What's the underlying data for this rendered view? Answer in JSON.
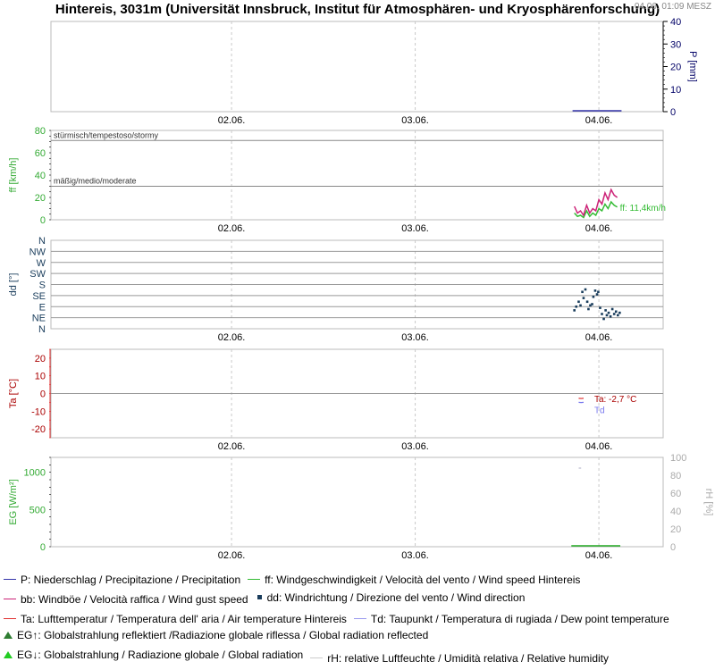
{
  "header": {
    "title": "Hintereis, 3031m (Universität Innsbruck, Institut für Atmosphären- und Kryosphärenforschung)",
    "timestamp": "04.06. 01:09 MESZ"
  },
  "colors": {
    "precip": "#3333aa",
    "wind_speed": "#33bb33",
    "wind_gust": "#cc2277",
    "wind_dir": "#1a3d5c",
    "air_temp": "#e03030",
    "dew_point": "#7777ee",
    "rad_reflected": "#2e7d32",
    "rad_global": "#22aa22",
    "humidity": "#c8c8d8",
    "grid": "#c8c8c8",
    "axis_precip": "#000066",
    "axis_ff": "#33aa33",
    "axis_dd": "#1a3d5c",
    "axis_ta": "#aa0000",
    "axis_eg": "#33aa33",
    "axis_rh": "#aaaaaa"
  },
  "chart_data": [
    {
      "id": "precip",
      "type": "bar",
      "ylabel": "P [mm]",
      "ylim": [
        0,
        40
      ],
      "yticks": [
        0,
        10,
        20,
        30,
        40
      ],
      "yaxis_side": "right",
      "xlabels": [
        "02.06.",
        "03.06.",
        "04.06."
      ],
      "xtick_positions": [
        0.295,
        0.595,
        0.895
      ],
      "series": [
        {
          "x": [
            0.852,
            0.862,
            0.872,
            0.882,
            0.892,
            0.902,
            0.912,
            0.922,
            0.932
          ],
          "y": [
            0,
            0,
            0,
            0,
            0,
            0,
            0,
            0,
            0
          ]
        }
      ]
    },
    {
      "id": "wind",
      "type": "line",
      "ylabel": "ff [km/h]",
      "ylim": [
        0,
        80
      ],
      "yticks": [
        0,
        20,
        40,
        60,
        80
      ],
      "xlabels": [
        "02.06.",
        "03.06.",
        "04.06."
      ],
      "xtick_positions": [
        0.295,
        0.595,
        0.895
      ],
      "thresholds": [
        {
          "label": "stürmisch/tempestoso/stormy",
          "value": 71
        },
        {
          "label": "mäßig/medio/moderate",
          "value": 30
        }
      ],
      "annotation": "ff: 11,4km/h",
      "series": [
        {
          "name": "ff",
          "x": [
            0.855,
            0.86,
            0.865,
            0.87,
            0.875,
            0.88,
            0.885,
            0.89,
            0.895,
            0.9,
            0.905,
            0.91,
            0.915,
            0.92,
            0.925
          ],
          "y": [
            6,
            3,
            4,
            2,
            8,
            3,
            6,
            4,
            10,
            8,
            14,
            10,
            16,
            13,
            11.4
          ]
        },
        {
          "name": "bb",
          "x": [
            0.855,
            0.86,
            0.865,
            0.87,
            0.875,
            0.88,
            0.885,
            0.89,
            0.895,
            0.9,
            0.905,
            0.91,
            0.915,
            0.92,
            0.925
          ],
          "y": [
            12,
            6,
            8,
            4,
            13,
            6,
            10,
            8,
            18,
            14,
            24,
            18,
            27,
            22,
            20
          ]
        }
      ]
    },
    {
      "id": "winddir",
      "type": "scatter",
      "ylabel": "dd [°]",
      "ylim": [
        0,
        360
      ],
      "ytick_labels": [
        "N",
        "NE",
        "E",
        "SE",
        "S",
        "SW",
        "W",
        "NW",
        "N"
      ],
      "xlabels": [
        "02.06.",
        "03.06.",
        "04.06."
      ],
      "xtick_positions": [
        0.295,
        0.595,
        0.895
      ],
      "series": [
        {
          "name": "dd",
          "x": [
            0.855,
            0.858,
            0.862,
            0.865,
            0.868,
            0.87,
            0.873,
            0.876,
            0.878,
            0.881,
            0.884,
            0.886,
            0.889,
            0.892,
            0.894,
            0.897,
            0.9,
            0.903,
            0.906,
            0.908,
            0.911,
            0.914,
            0.917,
            0.92,
            0.923,
            0.926,
            0.929
          ],
          "y": [
            75,
            90,
            110,
            95,
            150,
            125,
            160,
            110,
            80,
            95,
            100,
            130,
            155,
            140,
            150,
            85,
            60,
            40,
            75,
            55,
            65,
            50,
            80,
            60,
            70,
            55,
            65
          ]
        }
      ]
    },
    {
      "id": "temperature",
      "type": "line",
      "ylabel": "Ta [°C]",
      "ylim": [
        -25,
        25
      ],
      "yticks": [
        -20,
        -10,
        0,
        10,
        20
      ],
      "xlabels": [
        "02.06.",
        "03.06.",
        "04.06."
      ],
      "xtick_positions": [
        0.295,
        0.595,
        0.895
      ],
      "annotations": [
        "Ta: -2,7 °C",
        "Td"
      ],
      "series": [
        {
          "name": "Ta",
          "x": [
            0.862,
            0.866,
            0.87
          ],
          "y": [
            -2.7,
            -2.8,
            -2.7
          ]
        },
        {
          "name": "Td",
          "x": [
            0.862,
            0.866,
            0.87
          ],
          "y": [
            -5.0,
            -5.1,
            -5.0
          ]
        }
      ]
    },
    {
      "id": "radiation",
      "type": "line",
      "ylabel": "EG [W/m²]",
      "ylim": [
        0,
        1200
      ],
      "yticks": [
        0,
        500,
        1000
      ],
      "ylabel_right": "rH [%]",
      "ylim_right": [
        0,
        100
      ],
      "yticks_right": [
        0,
        20,
        40,
        60,
        80,
        100
      ],
      "xlabels": [
        "02.06.",
        "03.06.",
        "04.06."
      ],
      "xtick_positions": [
        0.295,
        0.595,
        0.895
      ],
      "series": [
        {
          "name": "EG",
          "x": [
            0.85,
            0.87,
            0.89,
            0.91,
            0.93
          ],
          "y": [
            0,
            0,
            0,
            0,
            0
          ]
        },
        {
          "name": "rH",
          "x": [
            0.862,
            0.866
          ],
          "y": [
            88,
            88
          ]
        }
      ]
    }
  ],
  "legend": [
    [
      {
        "text": "P: Niederschlag / Precipitazione / Precipitation",
        "color": "#3333aa",
        "marker": "line"
      },
      {
        "text": "ff: Windgeschwindigkeit / Velocità del vento / Wind speed  Hintereis",
        "color": "#33bb33",
        "marker": "line"
      }
    ],
    [
      {
        "text": "bb: Windböe / Velocità raffica / Wind gust speed",
        "color": "#cc2277",
        "marker": "line"
      },
      {
        "text": "dd: Windrichtung / Direzione del vento / Wind direction",
        "color": "#1a3d5c",
        "marker": "square"
      }
    ],
    [
      {
        "text": "Ta: Lufttemperatur / Temperatura dell' aria / Air temperature  Hintereis",
        "color": "#e03030",
        "marker": "line"
      },
      {
        "text": "Td: Taupunkt / Temperatura di rugiada / Dew point temperature",
        "color": "#9999ee",
        "marker": "line"
      }
    ],
    [
      {
        "text": "EG↑: Globalstrahlung reflektiert /Radiazione globale riflessa / Global radiation reflected",
        "color": "#2e7d32",
        "marker": "triangle"
      }
    ],
    [
      {
        "text": "EG↓: Globalstrahlung / Radiazione globale / Global radiation",
        "color": "#22cc22",
        "marker": "triangle"
      },
      {
        "text": "rH: relative Luftfeuchte / Umidità relativa / Relative humidity",
        "color": "#cccccc",
        "marker": "line"
      }
    ]
  ]
}
